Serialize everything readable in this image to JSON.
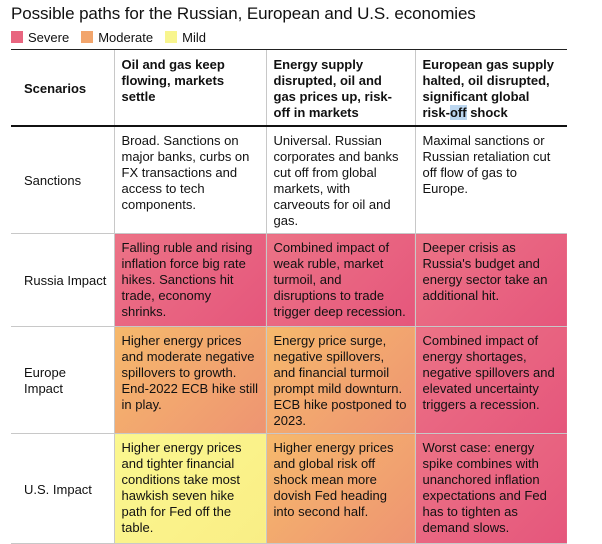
{
  "title": "Possible paths for the Russian, European and U.S. economies",
  "legend": [
    {
      "label": "Severe",
      "color": "#e8657f"
    },
    {
      "label": "Moderate",
      "color": "#f2a56c"
    },
    {
      "label": "Mild",
      "color": "#f8f58e"
    }
  ],
  "table": {
    "corner": "Scenarios",
    "columns": [
      "Oil and gas keep flowing, markets settle",
      "Energy supply disrupted, oil and gas prices up, risk-off in markets",
      {
        "before": "European gas supply halted, oil disrupted, significant global risk-",
        "highlight": "off",
        "after": " shock"
      }
    ],
    "rows": [
      {
        "label": "Sanctions",
        "cells": [
          {
            "text": "Broad. Sanctions on major banks, curbs on FX transactions and access to tech components.",
            "severity": "none"
          },
          {
            "text": "Universal. Russian corporates and banks cut off from global markets, with carveouts for oil and gas.",
            "severity": "none"
          },
          {
            "text": "Maximal sanctions or Russian retaliation cut off flow of gas to Europe.",
            "severity": "none"
          }
        ]
      },
      {
        "label": "Russia Impact",
        "cells": [
          {
            "text": "Falling ruble and rising inflation force big rate hikes. Sanctions hit trade, economy shrinks.",
            "severity": "Severe"
          },
          {
            "text": "Combined impact of weak ruble, market turmoil, and disruptions to trade trigger deep recession.",
            "severity": "Severe"
          },
          {
            "text": "Deeper crisis as Russia's budget and energy sector take an additional hit.",
            "severity": "Severe"
          }
        ]
      },
      {
        "label": "Europe Impact",
        "cells": [
          {
            "text": "Higher energy prices and moderate negative spillovers to growth. End-2022 ECB hike still in play.",
            "severity": "Moderate"
          },
          {
            "text": "Energy price surge, negative spillovers, and financial turmoil prompt mild downturn. ECB hike postponed to 2023.",
            "severity": "Moderate"
          },
          {
            "text": "Combined impact of energy shortages, negative spillovers and elevated uncertainty triggers a recession.",
            "severity": "Severe"
          }
        ]
      },
      {
        "label": "U.S. Impact",
        "cells": [
          {
            "text": "Higher energy prices and tighter financial conditions take most hawkish seven hike path for Fed off the table.",
            "severity": "Mild"
          },
          {
            "text": "Higher energy prices and global risk off shock mean more dovish Fed heading into second half.",
            "severity": "Moderate"
          },
          {
            "text": "Worst case: energy spike combines with unanchored inflation expectations and Fed has to tighten as demand slows.",
            "severity": "Severe"
          }
        ]
      }
    ]
  },
  "severity_colors": {
    "Severe": [
      "#ec7386",
      "#e5567c"
    ],
    "Moderate": [
      "#f6b96c",
      "#ee9472"
    ],
    "Mild": [
      "#fbf78f",
      "#f9ee86"
    ]
  }
}
